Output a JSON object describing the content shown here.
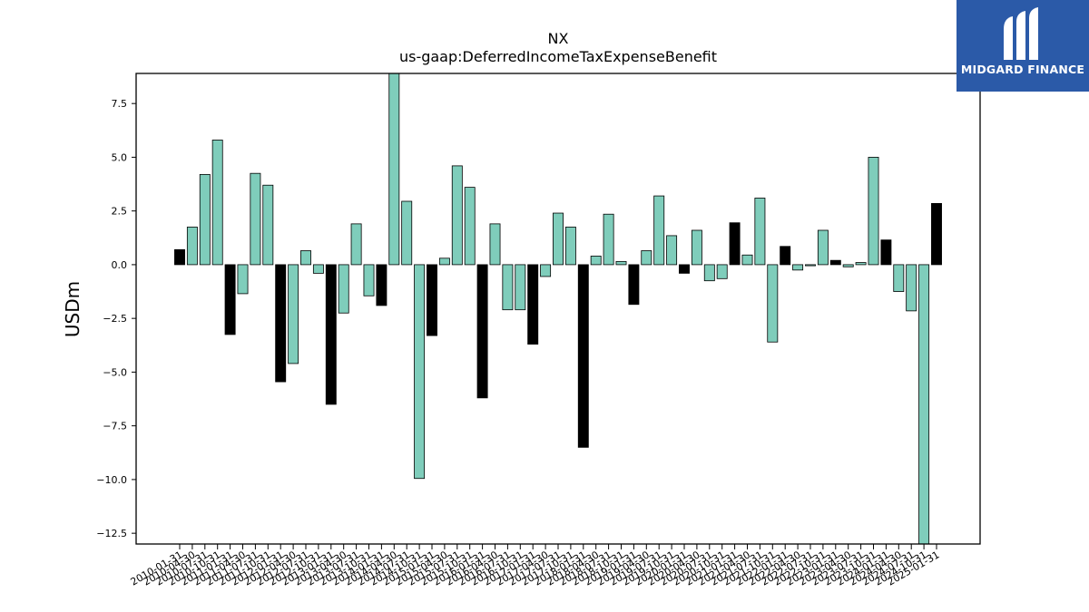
{
  "brand": {
    "name": "MIDGARD FINANCE",
    "logo_icon": "midgard-m-logo-icon",
    "bg_color": "#2b5aa8"
  },
  "chart_data": {
    "type": "bar",
    "title": "NX",
    "subtitle": "us-gaap:DeferredIncomeTaxExpenseBenefit",
    "xlabel": "",
    "ylabel": "USDm",
    "ylim": [
      -13.0,
      8.9
    ],
    "yticks": [
      -12.5,
      -10.0,
      -7.5,
      -5.0,
      -2.5,
      0.0,
      2.5,
      5.0,
      7.5
    ],
    "colors": {
      "annual": "#000000",
      "quarterly": "#7fcdbb"
    },
    "grid": false,
    "legend": "none",
    "categories": [
      "2010-01-31",
      "2010-04-30",
      "2010-07-31",
      "2010-10-31",
      "2011-01-31",
      "2011-04-30",
      "2011-07-31",
      "2011-10-31",
      "2012-01-31",
      "2012-04-30",
      "2012-07-31",
      "2012-10-31",
      "2013-01-31",
      "2013-04-30",
      "2013-07-31",
      "2013-10-31",
      "2014-01-31",
      "2014-04-30",
      "2014-07-31",
      "2014-10-31",
      "2015-01-31",
      "2015-04-30",
      "2015-07-31",
      "2015-10-31",
      "2016-01-31",
      "2016-04-30",
      "2016-07-31",
      "2016-10-31",
      "2017-01-31",
      "2017-04-30",
      "2017-07-31",
      "2017-10-31",
      "2018-01-31",
      "2018-04-30",
      "2018-07-31",
      "2018-10-31",
      "2019-01-31",
      "2019-04-30",
      "2019-07-31",
      "2019-10-31",
      "2020-01-31",
      "2020-04-30",
      "2020-07-31",
      "2020-10-31",
      "2021-01-31",
      "2021-04-30",
      "2021-07-31",
      "2021-10-31",
      "2022-01-31",
      "2022-04-30",
      "2022-07-31",
      "2022-10-31",
      "2023-01-31",
      "2023-04-30",
      "2023-07-31",
      "2023-10-31",
      "2024-01-31",
      "2024-04-30",
      "2024-07-31",
      "2024-10-31",
      "2025-01-31"
    ],
    "values": [
      0.7,
      1.75,
      4.2,
      5.8,
      -3.25,
      -1.35,
      4.25,
      3.7,
      -5.45,
      -4.6,
      0.65,
      -0.4,
      -6.5,
      -2.25,
      1.9,
      -1.45,
      -1.9,
      9.0,
      2.95,
      -9.95,
      -3.3,
      0.3,
      4.6,
      3.6,
      -6.2,
      1.9,
      -2.1,
      -2.1,
      -3.7,
      -0.55,
      2.4,
      1.75,
      -8.5,
      0.4,
      2.35,
      0.15,
      -1.85,
      0.65,
      3.2,
      1.35,
      -0.4,
      1.6,
      -0.75,
      -0.65,
      1.95,
      0.45,
      3.1,
      -3.6,
      0.85,
      -0.25,
      -0.05,
      1.6,
      0.2,
      -0.1,
      0.1,
      5.0,
      1.15,
      -1.25,
      -2.15,
      -13.0,
      2.85
    ],
    "annual": [
      true,
      false,
      false,
      false,
      true,
      false,
      false,
      false,
      true,
      false,
      false,
      false,
      true,
      false,
      false,
      false,
      true,
      false,
      false,
      false,
      true,
      false,
      false,
      false,
      true,
      false,
      false,
      false,
      true,
      false,
      false,
      false,
      true,
      false,
      false,
      false,
      true,
      false,
      false,
      false,
      true,
      false,
      false,
      false,
      true,
      false,
      false,
      false,
      true,
      false,
      false,
      false,
      true,
      false,
      false,
      false,
      true,
      false,
      false,
      false,
      true
    ]
  }
}
